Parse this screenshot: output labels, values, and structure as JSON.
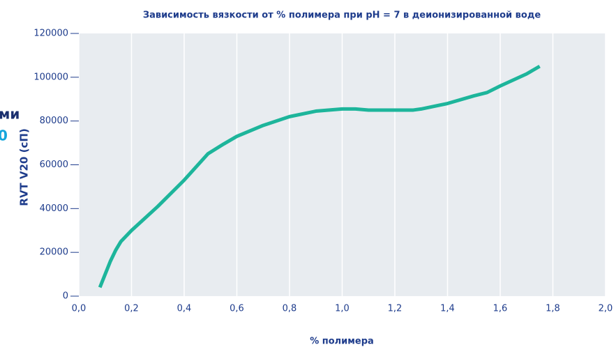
{
  "chart_data": {
    "type": "line",
    "title": "Зависимость вязкости от % полимера при pH = 7 в деионизированной воде",
    "xlabel": "% полимера",
    "ylabel": "RVT  V20 (сП)",
    "annotations": [
      "ми",
      "0"
    ],
    "x": [
      0.08,
      0.1,
      0.12,
      0.14,
      0.16,
      0.2,
      0.25,
      0.3,
      0.4,
      0.49,
      0.55,
      0.6,
      0.7,
      0.8,
      0.9,
      1.0,
      1.05,
      1.1,
      1.2,
      1.27,
      1.3,
      1.4,
      1.5,
      1.55,
      1.6,
      1.7,
      1.75
    ],
    "series": [
      {
        "name": "RVT V20",
        "color": "#1db59b",
        "values": [
          4000,
          10000,
          16000,
          21000,
          25000,
          30000,
          35500,
          41000,
          53000,
          65000,
          69500,
          73000,
          78000,
          82000,
          84500,
          85500,
          85500,
          85000,
          85000,
          85000,
          85500,
          88000,
          91500,
          93000,
          96000,
          101500,
          105000
        ]
      }
    ],
    "xlim": [
      0,
      2.0
    ],
    "xticks": [
      {
        "value": 0,
        "label": "0,0"
      },
      {
        "value": 0.2,
        "label": "0,2"
      },
      {
        "value": 0.4,
        "label": "0,4"
      },
      {
        "value": 0.6,
        "label": "0,6"
      },
      {
        "value": 0.8,
        "label": "0,8"
      },
      {
        "value": 1.0,
        "label": "1,0"
      },
      {
        "value": 1.2,
        "label": "1,2"
      },
      {
        "value": 1.4,
        "label": "1,4"
      },
      {
        "value": 1.6,
        "label": "1,6"
      },
      {
        "value": 1.8,
        "label": "1,8"
      },
      {
        "value": 2.0,
        "label": "2,0"
      }
    ],
    "ylim": [
      0,
      120000
    ],
    "yticks": [
      0,
      20000,
      40000,
      60000,
      80000,
      100000,
      120000
    ],
    "grid": true
  }
}
